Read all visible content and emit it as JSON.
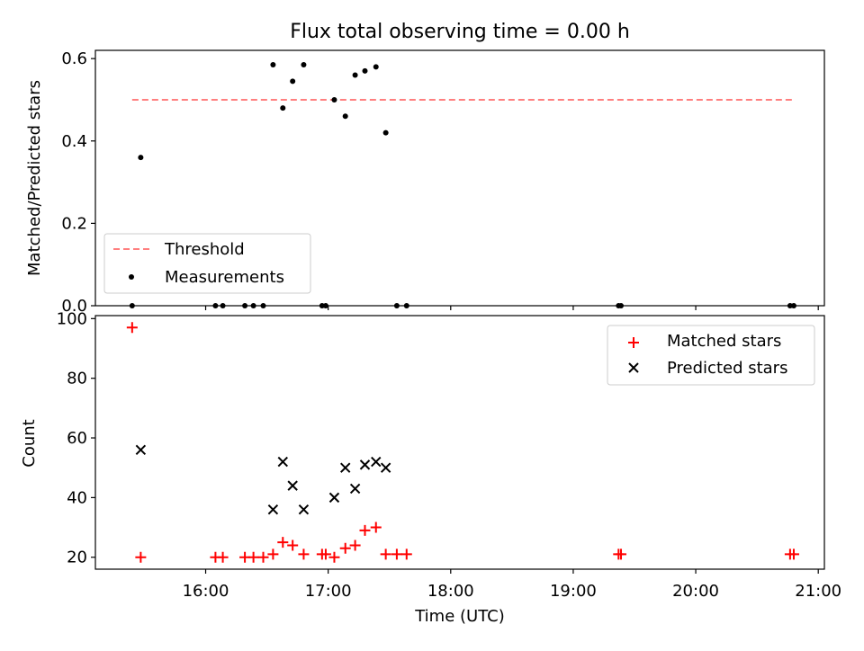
{
  "title": "Flux total observing time = 0.00 h",
  "colors": {
    "threshold": "#ff7f7f",
    "measurement": "#000000",
    "matched": "#ff0000",
    "predicted": "#000000"
  },
  "chart_data": [
    {
      "type": "scatter",
      "ylabel": "Matched/Predicted stars",
      "xlim": [
        15.1,
        21.05
      ],
      "ylim": [
        0,
        0.62
      ],
      "yticks": [
        0.0,
        0.2,
        0.4,
        0.6
      ],
      "ytick_labels": [
        "0.0",
        "0.2",
        "0.4",
        "0.6"
      ],
      "legend": {
        "position": "lower-left",
        "entries": [
          "Threshold",
          "Measurements"
        ]
      },
      "threshold": {
        "name": "Threshold",
        "value": 0.5,
        "x_range": [
          15.4,
          20.8
        ]
      },
      "series": [
        {
          "name": "Measurements",
          "x": [
            15.4,
            15.47,
            16.08,
            16.14,
            16.32,
            16.39,
            16.47,
            16.55,
            16.63,
            16.71,
            16.8,
            16.95,
            16.98,
            17.05,
            17.14,
            17.22,
            17.3,
            17.39,
            17.47,
            17.56,
            17.64,
            19.37,
            19.39,
            20.77,
            20.8
          ],
          "y": [
            0.0,
            0.36,
            0.0,
            0.0,
            0.0,
            0.0,
            0.0,
            0.585,
            0.48,
            0.545,
            0.585,
            0.0,
            0.0,
            0.5,
            0.46,
            0.56,
            0.57,
            0.58,
            0.42,
            0.0,
            0.0,
            0.0,
            0.0,
            0.0,
            0.0
          ]
        }
      ]
    },
    {
      "type": "scatter",
      "xlabel": "Time (UTC)",
      "ylabel": "Count",
      "xlim": [
        15.1,
        21.05
      ],
      "ylim": [
        16,
        101
      ],
      "xticks": [
        16,
        17,
        18,
        19,
        20,
        21
      ],
      "xtick_labels": [
        "16:00",
        "17:00",
        "18:00",
        "19:00",
        "20:00",
        "21:00"
      ],
      "yticks": [
        20,
        40,
        60,
        80,
        100
      ],
      "ytick_labels": [
        "20",
        "40",
        "60",
        "80",
        "100"
      ],
      "legend": {
        "position": "top-right",
        "entries": [
          "Matched stars",
          "Predicted stars"
        ]
      },
      "series": [
        {
          "name": "Matched stars",
          "x": [
            15.4,
            15.47,
            16.08,
            16.14,
            16.32,
            16.39,
            16.47,
            16.55,
            16.63,
            16.71,
            16.8,
            16.95,
            16.98,
            17.05,
            17.14,
            17.22,
            17.3,
            17.39,
            17.47,
            17.56,
            17.64,
            19.37,
            19.39,
            20.77,
            20.8
          ],
          "y": [
            97,
            20,
            20,
            20,
            20,
            20,
            20,
            21,
            25,
            24,
            21,
            21,
            21,
            20,
            23,
            24,
            29,
            30,
            21,
            21,
            21,
            21,
            21,
            21,
            21
          ]
        },
        {
          "name": "Predicted stars",
          "x": [
            15.47,
            16.55,
            16.63,
            16.71,
            16.8,
            17.05,
            17.14,
            17.22,
            17.3,
            17.39,
            17.47
          ],
          "y": [
            56,
            36,
            52,
            44,
            36,
            40,
            50,
            43,
            51,
            52,
            50
          ]
        }
      ]
    }
  ]
}
